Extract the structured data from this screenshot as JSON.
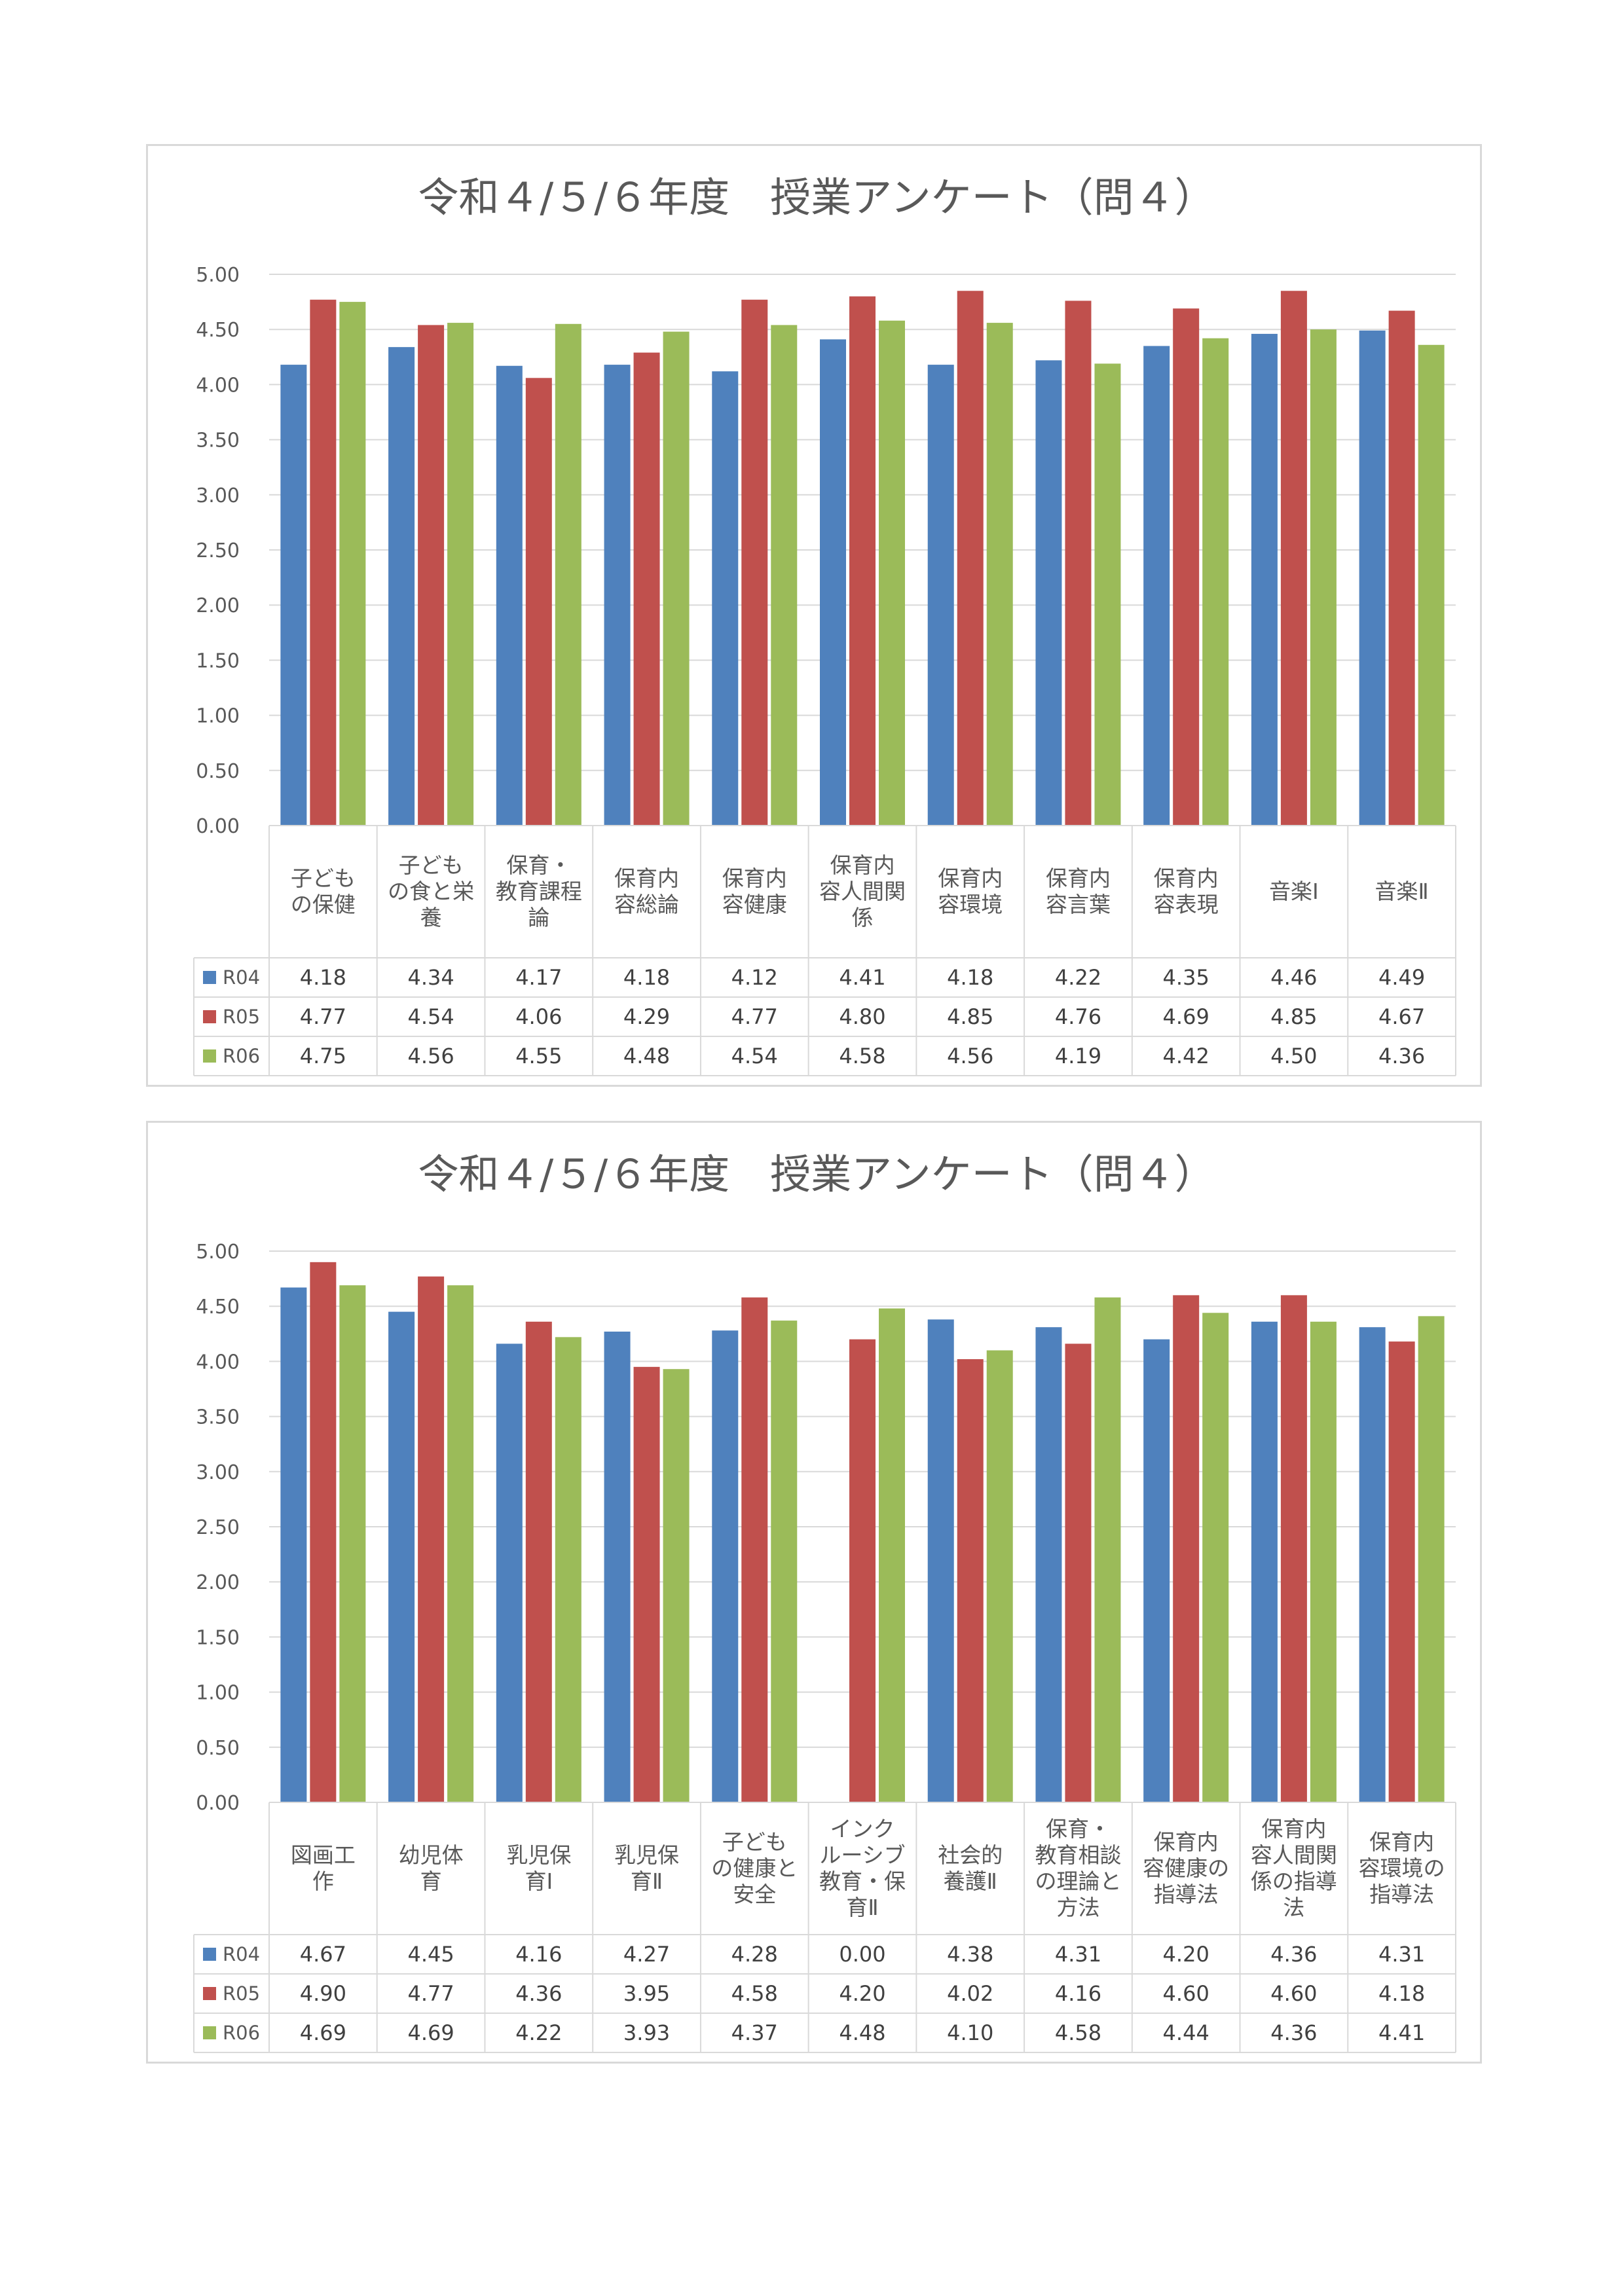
{
  "chart_data": [
    {
      "type": "bar",
      "title": "令和４/５/６年度　授業アンケート（問４）",
      "categories": [
        [
          "子ども",
          "の保健"
        ],
        [
          "子ども",
          "の食と栄",
          "養"
        ],
        [
          "保育・",
          "教育課程",
          "論"
        ],
        [
          "保育内",
          "容総論"
        ],
        [
          "保育内",
          "容健康"
        ],
        [
          "保育内",
          "容人間関",
          "係"
        ],
        [
          "保育内",
          "容環境"
        ],
        [
          "保育内",
          "容言葉"
        ],
        [
          "保育内",
          "容表現"
        ],
        [
          "音楽Ⅰ"
        ],
        [
          "音楽Ⅱ"
        ]
      ],
      "series": [
        {
          "name": "R04",
          "color": "#4f81bd",
          "values": [
            4.18,
            4.34,
            4.17,
            4.18,
            4.12,
            4.41,
            4.18,
            4.22,
            4.35,
            4.46,
            4.49
          ]
        },
        {
          "name": "R05",
          "color": "#c0504d",
          "values": [
            4.77,
            4.54,
            4.06,
            4.29,
            4.77,
            4.8,
            4.85,
            4.76,
            4.69,
            4.85,
            4.67
          ]
        },
        {
          "name": "R06",
          "color": "#9bbb59",
          "values": [
            4.75,
            4.56,
            4.55,
            4.48,
            4.54,
            4.58,
            4.56,
            4.19,
            4.42,
            4.5,
            4.36
          ]
        }
      ],
      "ylim": [
        0,
        5
      ],
      "yticks": [
        "0.00",
        "0.50",
        "1.00",
        "1.50",
        "2.00",
        "2.50",
        "3.00",
        "3.50",
        "4.00",
        "4.50",
        "5.00"
      ],
      "grid": true,
      "legend": "data-table"
    },
    {
      "type": "bar",
      "title": "令和４/５/６年度　授業アンケート（問４）",
      "categories": [
        [
          "図画工",
          "作"
        ],
        [
          "幼児体",
          "育"
        ],
        [
          "乳児保",
          "育Ⅰ"
        ],
        [
          "乳児保",
          "育Ⅱ"
        ],
        [
          "子ども",
          "の健康と",
          "安全"
        ],
        [
          "インク",
          "ルーシブ",
          "教育・保",
          "育Ⅱ"
        ],
        [
          "社会的",
          "養護Ⅱ"
        ],
        [
          "保育・",
          "教育相談",
          "の理論と",
          "方法"
        ],
        [
          "保育内",
          "容健康の",
          "指導法"
        ],
        [
          "保育内",
          "容人間関",
          "係の指導",
          "法"
        ],
        [
          "保育内",
          "容環境の",
          "指導法"
        ]
      ],
      "series": [
        {
          "name": "R04",
          "color": "#4f81bd",
          "values": [
            4.67,
            4.45,
            4.16,
            4.27,
            4.28,
            0.0,
            4.38,
            4.31,
            4.2,
            4.36,
            4.31
          ]
        },
        {
          "name": "R05",
          "color": "#c0504d",
          "values": [
            4.9,
            4.77,
            4.36,
            3.95,
            4.58,
            4.2,
            4.02,
            4.16,
            4.6,
            4.6,
            4.18
          ]
        },
        {
          "name": "R06",
          "color": "#9bbb59",
          "values": [
            4.69,
            4.69,
            4.22,
            3.93,
            4.37,
            4.48,
            4.1,
            4.58,
            4.44,
            4.36,
            4.41
          ]
        }
      ],
      "ylim": [
        0,
        5
      ],
      "yticks": [
        "0.00",
        "0.50",
        "1.00",
        "1.50",
        "2.00",
        "2.50",
        "3.00",
        "3.50",
        "4.00",
        "4.50",
        "5.00"
      ],
      "grid": true,
      "legend": "data-table"
    }
  ]
}
